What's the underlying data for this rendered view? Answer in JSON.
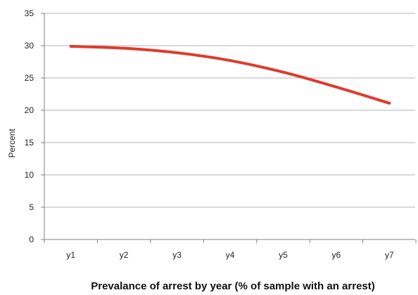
{
  "chart_data": {
    "type": "line",
    "categories": [
      "y1",
      "y2",
      "y3",
      "y4",
      "y5",
      "y6",
      "y7"
    ],
    "series": [
      {
        "values": [
          29.9,
          29.6,
          28.9,
          27.7,
          25.9,
          23.6,
          21.1
        ],
        "color": "#e03a2c"
      }
    ],
    "title": "Prevalance of arrest by year (% of sample with an arrest)",
    "xlabel": "",
    "ylabel": "Percent",
    "ylim": [
      0,
      35
    ],
    "yticks": [
      0,
      5,
      10,
      15,
      20,
      25,
      30,
      35
    ],
    "grid": true,
    "legend": "none",
    "colors": {
      "grid": "#9a9a9a",
      "axis": "#7f7f7f"
    }
  }
}
